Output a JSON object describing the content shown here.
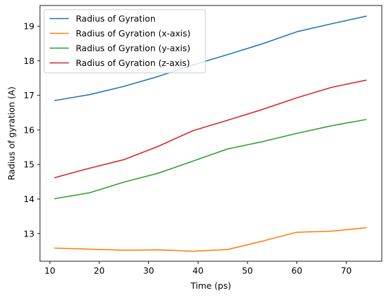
{
  "chart_data": {
    "type": "line",
    "xlabel": "Time (ps)",
    "ylabel": "Radius of gyration (A)",
    "xlim": [
      8,
      77.2
    ],
    "ylim": [
      12.2,
      19.6
    ],
    "xticks": [
      10,
      20,
      30,
      40,
      50,
      60,
      70
    ],
    "yticks": [
      13,
      14,
      15,
      16,
      17,
      18,
      19
    ],
    "legend_position": "top-left",
    "grid": false,
    "x": [
      11,
      18,
      25,
      32,
      39,
      46,
      53,
      60,
      67,
      74
    ],
    "series": [
      {
        "name": "Radius of Gyration",
        "color": "#1f77b4",
        "values": [
          16.85,
          17.02,
          17.26,
          17.55,
          17.88,
          18.18,
          18.49,
          18.84,
          19.07,
          19.29
        ]
      },
      {
        "name": "Radius of Gyration (x-axis)",
        "color": "#ff7f0e",
        "values": [
          12.58,
          12.55,
          12.52,
          12.53,
          12.49,
          12.54,
          12.78,
          13.04,
          13.07,
          13.17
        ]
      },
      {
        "name": "Radius of Gyration (y-axis)",
        "color": "#2ca02c",
        "values": [
          14.01,
          14.18,
          14.49,
          14.75,
          15.1,
          15.45,
          15.66,
          15.9,
          16.12,
          16.3
        ]
      },
      {
        "name": "Radius of Gyration (z-axis)",
        "color": "#d62728",
        "values": [
          14.62,
          14.89,
          15.14,
          15.53,
          15.98,
          16.28,
          16.59,
          16.93,
          17.23,
          17.44
        ]
      }
    ]
  }
}
